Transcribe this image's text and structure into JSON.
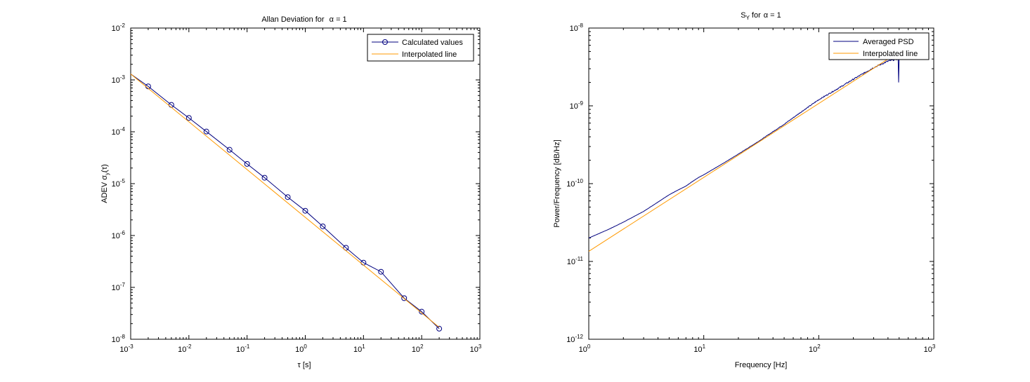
{
  "figure": {
    "background": "#ffffff"
  },
  "chart_data": [
    {
      "type": "line",
      "scale": {
        "x": "log",
        "y": "log"
      },
      "grid": false,
      "title": "Allan Deviation for",
      "title_symbol": "α = 1",
      "xlabel": "τ [s]",
      "ylabel": "ADEV σ",
      "ylabel_sub": "y",
      "ylabel_suffix": "(τ)",
      "xlim": [
        0.001,
        1000
      ],
      "ylim": [
        1e-08,
        0.01
      ],
      "x_ticks": [
        {
          "value": 0.001,
          "base": "10",
          "exp": "-3"
        },
        {
          "value": 0.01,
          "base": "10",
          "exp": "-2"
        },
        {
          "value": 0.1,
          "base": "10",
          "exp": "-1"
        },
        {
          "value": 1,
          "base": "10",
          "exp": "0"
        },
        {
          "value": 10,
          "base": "10",
          "exp": "1"
        },
        {
          "value": 100,
          "base": "10",
          "exp": "2"
        },
        {
          "value": 1000,
          "base": "10",
          "exp": "3"
        }
      ],
      "y_ticks": [
        {
          "value": 1e-08,
          "base": "10",
          "exp": "-8"
        },
        {
          "value": 1e-07,
          "base": "10",
          "exp": "-7"
        },
        {
          "value": 1e-06,
          "base": "10",
          "exp": "-6"
        },
        {
          "value": 1e-05,
          "base": "10",
          "exp": "-5"
        },
        {
          "value": 0.0001,
          "base": "10",
          "exp": "-4"
        },
        {
          "value": 0.001,
          "base": "10",
          "exp": "-3"
        },
        {
          "value": 0.01,
          "base": "10",
          "exp": "-2"
        }
      ],
      "legend_position": "top-right",
      "series": [
        {
          "name": "Calculated values",
          "color": "#00007f",
          "marker": "circle",
          "x": [
            0.002,
            0.005,
            0.01,
            0.02,
            0.05,
            0.1,
            0.2,
            0.5,
            1,
            2,
            5,
            10,
            20,
            50,
            100,
            200
          ],
          "y": [
            0.00075,
            0.00033,
            0.000185,
            0.000101,
            4.5e-05,
            2.4e-05,
            1.3e-05,
            5.5e-06,
            3e-06,
            1.5e-06,
            5.8e-07,
            3e-07,
            2e-07,
            6.2e-08,
            3.4e-08,
            1.6e-08
          ],
          "line_start": {
            "x": 0.001,
            "y": 0.0013
          }
        },
        {
          "name": "Interpolated line",
          "color": "#ff9900",
          "marker": "none",
          "x": [
            0.001,
            200
          ],
          "y": [
            0.0013,
            1.7e-08
          ]
        }
      ]
    },
    {
      "type": "line",
      "scale": {
        "x": "log",
        "y": "log"
      },
      "grid": false,
      "title": "S",
      "title_sub": "Y",
      "title_suffix": "for",
      "title_symbol": "α = 1",
      "xlabel": "Frequency [Hz]",
      "ylabel": "Power/Frequency [dB/Hz]",
      "xlim": [
        1,
        1000
      ],
      "ylim": [
        1e-12,
        1e-08
      ],
      "x_ticks": [
        {
          "value": 1,
          "base": "10",
          "exp": "0"
        },
        {
          "value": 10,
          "base": "10",
          "exp": "1"
        },
        {
          "value": 100,
          "base": "10",
          "exp": "2"
        },
        {
          "value": 1000,
          "base": "10",
          "exp": "3"
        }
      ],
      "y_ticks": [
        {
          "value": 1e-12,
          "base": "10",
          "exp": "-12"
        },
        {
          "value": 1e-11,
          "base": "10",
          "exp": "-11"
        },
        {
          "value": 1e-10,
          "base": "10",
          "exp": "-10"
        },
        {
          "value": 1e-09,
          "base": "10",
          "exp": "-9"
        },
        {
          "value": 1e-08,
          "base": "10",
          "exp": "-8"
        }
      ],
      "legend_position": "top-right",
      "series": [
        {
          "name": "Averaged PSD",
          "color": "#00007f",
          "marker": "none",
          "noisy": true,
          "x": [
            1,
            1.5,
            2,
            3,
            4,
            5,
            6,
            7,
            8,
            9,
            10,
            15,
            20,
            30,
            50,
            70,
            100,
            150,
            200,
            300,
            400,
            480,
            490,
            495,
            500
          ],
          "y": [
            2e-11,
            2.6e-11,
            3.2e-11,
            4.4e-11,
            5.8e-11,
            7.2e-11,
            8.3e-11,
            9.3e-11,
            1.07e-10,
            1.2e-10,
            1.3e-10,
            1.85e-10,
            2.4e-10,
            3.5e-10,
            5.8e-10,
            8.3e-10,
            1.2e-09,
            1.7e-09,
            2.2e-09,
            3.1e-09,
            3.75e-09,
            4e-09,
            4.1e-09,
            2e-09,
            4e-09
          ]
        },
        {
          "name": "Interpolated line",
          "color": "#ff9900",
          "marker": "none",
          "x": [
            1,
            400
          ],
          "y": [
            1.35e-11,
            4e-09
          ]
        }
      ]
    }
  ]
}
